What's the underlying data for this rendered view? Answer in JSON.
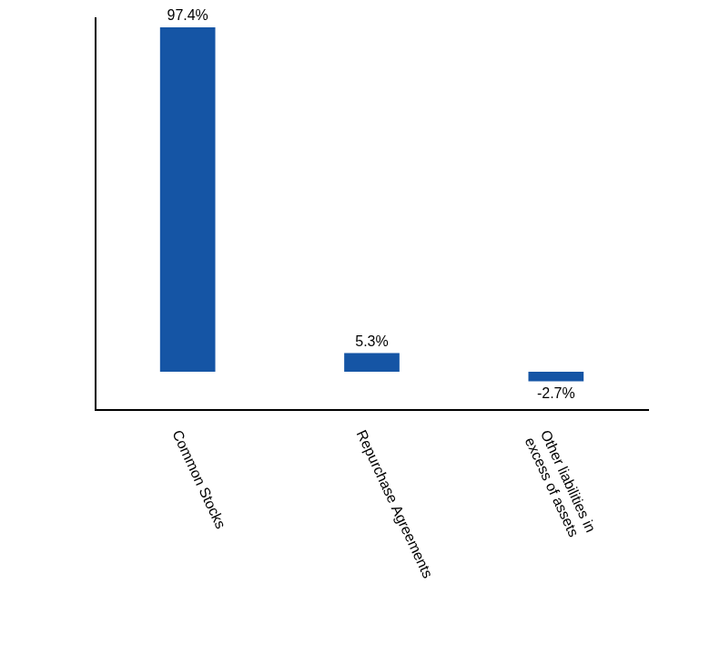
{
  "chart_data": {
    "type": "bar",
    "categories": [
      "Common Stocks",
      "Repurchase Agreements",
      "Other liabilities in\nexcess of assets"
    ],
    "values": [
      97.4,
      5.3,
      -2.7
    ],
    "value_labels": [
      "97.4%",
      "5.3%",
      "-2.7%"
    ],
    "color": "#1555a5",
    "ylim": [
      -10.8,
      100
    ],
    "grid": false,
    "data_labels": true,
    "tick_labels": "x"
  }
}
